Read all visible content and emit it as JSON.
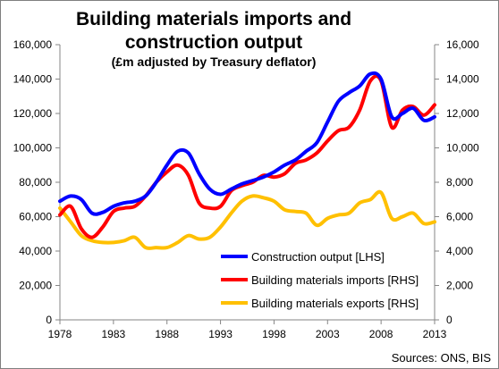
{
  "chart_data": {
    "type": "line",
    "title_line1": "Building materials imports and",
    "title_line2": "construction output",
    "subtitle": "(£m adjusted by Treasury deflator)",
    "source": "Sources: ONS, BIS",
    "x_ticks": [
      "1978",
      "1983",
      "1988",
      "1993",
      "1998",
      "2003",
      "2008",
      "2013"
    ],
    "xlim": [
      1978,
      2013
    ],
    "y_left": {
      "ylim": [
        0,
        160000
      ],
      "ticks": [
        "0",
        "20,000",
        "40,000",
        "60,000",
        "80,000",
        "100,000",
        "120,000",
        "140,000",
        "160,000"
      ]
    },
    "y_right": {
      "ylim": [
        0,
        16000
      ],
      "ticks": [
        "0",
        "2,000",
        "4,000",
        "6,000",
        "8,000",
        "10,000",
        "12,000",
        "14,000",
        "16,000"
      ]
    },
    "grid": false,
    "legend_position": "bottom-right",
    "series": [
      {
        "name": "Construction output [LHS]",
        "axis": "left",
        "color": "#0000ff",
        "x": [
          1978,
          1979,
          1980,
          1981,
          1982,
          1983,
          1984,
          1985,
          1986,
          1987,
          1988,
          1989,
          1990,
          1991,
          1992,
          1993,
          1994,
          1995,
          1996,
          1997,
          1998,
          1999,
          2000,
          2001,
          2002,
          2003,
          2004,
          2005,
          2006,
          2007,
          2008,
          2009,
          2010,
          2011,
          2012,
          2013
        ],
        "values": [
          69000,
          72000,
          70000,
          62000,
          62500,
          66000,
          68000,
          69000,
          72000,
          80000,
          90000,
          98000,
          97000,
          85000,
          76000,
          73000,
          76000,
          79000,
          81000,
          83000,
          86000,
          90000,
          93000,
          98000,
          103000,
          115000,
          127000,
          132000,
          136000,
          143000,
          140000,
          118000,
          120000,
          123000,
          116000,
          118000
        ]
      },
      {
        "name": "Building materials imports [RHS]",
        "axis": "right",
        "color": "#ff0000",
        "x": [
          1978,
          1979,
          1980,
          1981,
          1982,
          1983,
          1984,
          1985,
          1986,
          1987,
          1988,
          1989,
          1990,
          1991,
          1992,
          1993,
          1994,
          1995,
          1996,
          1997,
          1998,
          1999,
          2000,
          2001,
          2002,
          2003,
          2004,
          2005,
          2006,
          2007,
          2008,
          2009,
          2010,
          2011,
          2012,
          2013
        ],
        "values": [
          6100,
          6600,
          5300,
          4800,
          5400,
          6300,
          6500,
          6600,
          7200,
          8000,
          8600,
          9000,
          8400,
          6800,
          6500,
          6600,
          7500,
          7800,
          8000,
          8400,
          8300,
          8500,
          9100,
          9300,
          9700,
          10400,
          11000,
          11200,
          12200,
          13900,
          13900,
          11200,
          12200,
          12400,
          11900,
          12500
        ]
      },
      {
        "name": "Building materials exports [RHS]",
        "axis": "right",
        "color": "#ffc000",
        "x": [
          1978,
          1979,
          1980,
          1981,
          1982,
          1983,
          1984,
          1985,
          1986,
          1987,
          1988,
          1989,
          1990,
          1991,
          1992,
          1993,
          1994,
          1995,
          1996,
          1997,
          1998,
          1999,
          2000,
          2001,
          2002,
          2003,
          2004,
          2005,
          2006,
          2007,
          2008,
          2009,
          2010,
          2011,
          2012,
          2013
        ],
        "values": [
          6500,
          5700,
          4900,
          4600,
          4500,
          4500,
          4600,
          4800,
          4200,
          4200,
          4200,
          4500,
          4900,
          4700,
          4800,
          5400,
          6200,
          6900,
          7200,
          7100,
          6900,
          6400,
          6300,
          6200,
          5500,
          5900,
          6100,
          6200,
          6800,
          7000,
          7400,
          5900,
          6000,
          6200,
          5600,
          5700
        ]
      }
    ]
  }
}
